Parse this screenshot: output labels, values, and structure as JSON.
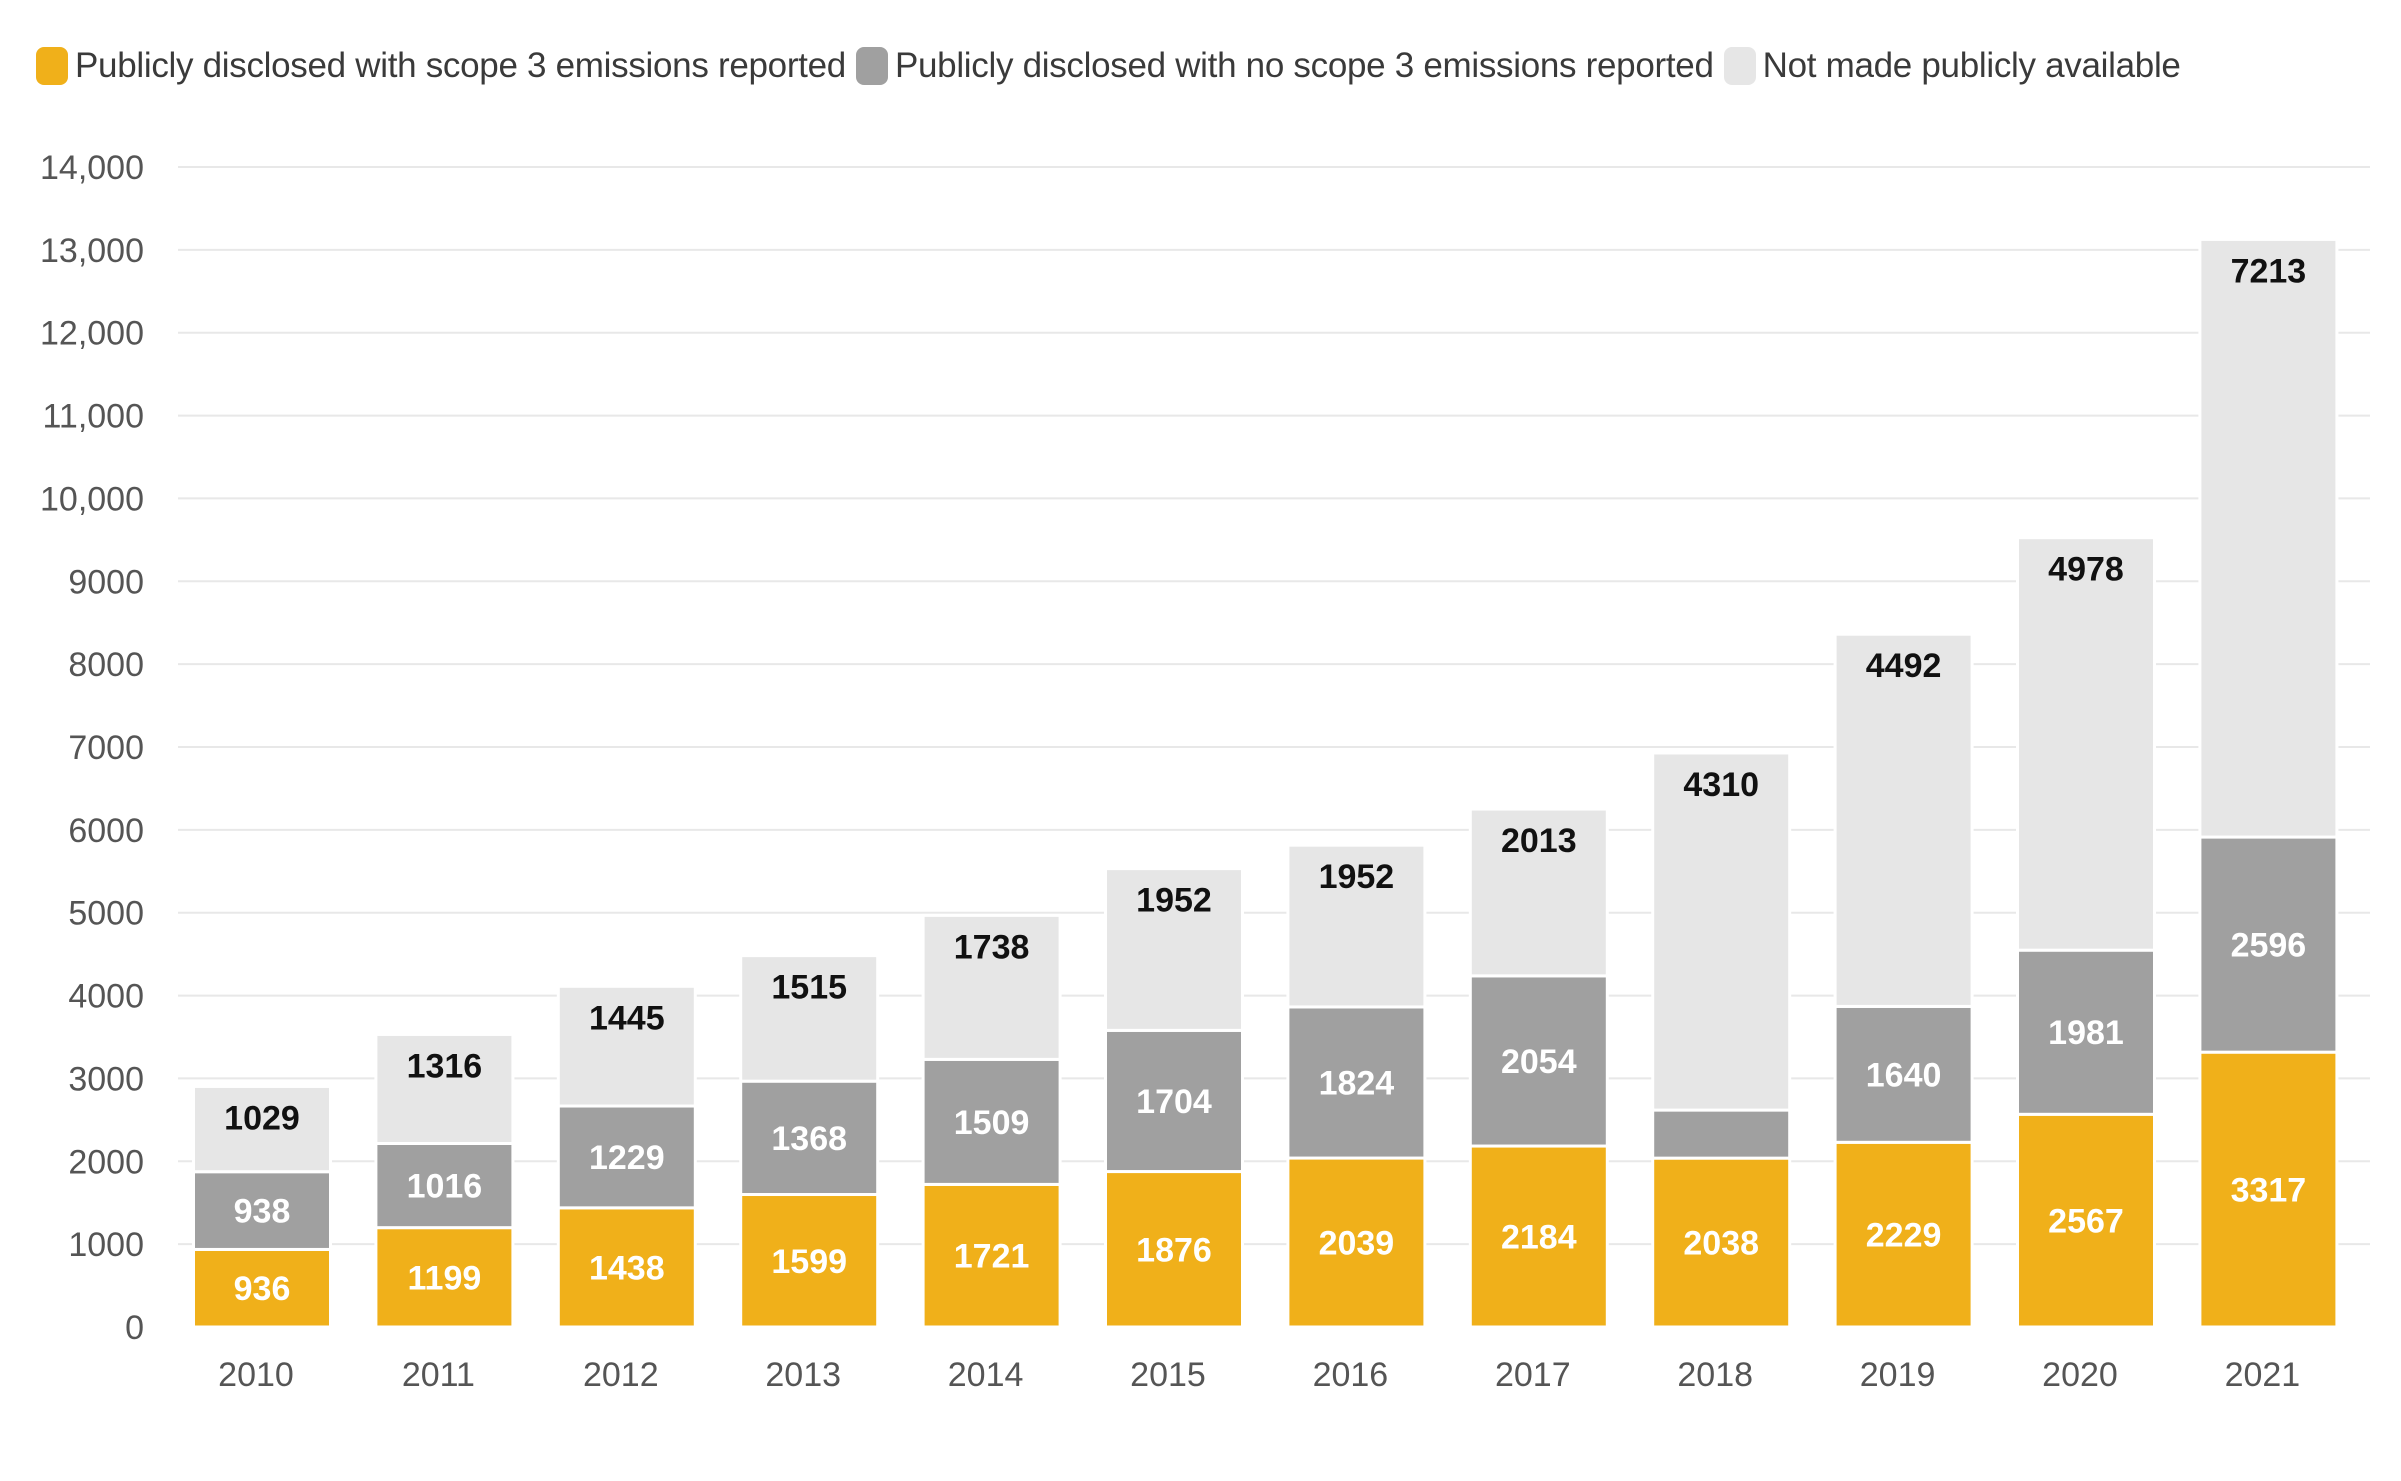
{
  "colors": {
    "scope3": "#F0B01A",
    "no_scope3": "#A0A0A0",
    "not_public": "#E6E6E6",
    "grid": "#E8E8E8",
    "label_dark": "#111111",
    "label_light": "#FFFFFF"
  },
  "chart_data": {
    "type": "bar",
    "stacked": true,
    "categories": [
      "2010",
      "2011",
      "2012",
      "2013",
      "2014",
      "2015",
      "2016",
      "2017",
      "2018",
      "2019",
      "2020",
      "2021"
    ],
    "series": [
      {
        "name": "Publicly disclosed with scope 3 emissions reported",
        "values": [
          936,
          1199,
          1438,
          1599,
          1721,
          1876,
          2039,
          2184,
          2038,
          2229,
          2567,
          3317
        ],
        "labels": [
          "936",
          "1199",
          "1438",
          "1599",
          "1721",
          "1876",
          "2039",
          "2184",
          "2038",
          "2229",
          "2567",
          "3317"
        ]
      },
      {
        "name": "Publicly disclosed with no scope 3 emissions reported",
        "values": [
          938,
          1016,
          1229,
          1368,
          1509,
          1704,
          1824,
          2054,
          580,
          1640,
          1981,
          2596
        ],
        "labels": [
          "938",
          "1016",
          "1229",
          "1368",
          "1509",
          "1704",
          "1824",
          "2054",
          "",
          "1640",
          "1981",
          "2596"
        ]
      },
      {
        "name": "Not made publicly available",
        "values": [
          1029,
          1316,
          1445,
          1515,
          1738,
          1952,
          1952,
          2013,
          4310,
          4492,
          4978,
          7213
        ],
        "labels": [
          "1029",
          "1316",
          "1445",
          "1515",
          "1738",
          "1952",
          "1952",
          "2013",
          "4310",
          "4492",
          "4978",
          "7213"
        ]
      }
    ],
    "ylim": [
      0,
      14000
    ],
    "yticks": [
      0,
      1000,
      2000,
      3000,
      4000,
      5000,
      6000,
      7000,
      8000,
      9000,
      10000,
      11000,
      12000,
      13000,
      14000
    ],
    "ytick_labels": [
      "0",
      "1000",
      "2000",
      "3000",
      "4000",
      "5000",
      "6000",
      "7000",
      "8000",
      "9000",
      "10,000",
      "11,000",
      "12,000",
      "13,000",
      "14,000"
    ],
    "grid": true,
    "legend_position": "top-left"
  }
}
